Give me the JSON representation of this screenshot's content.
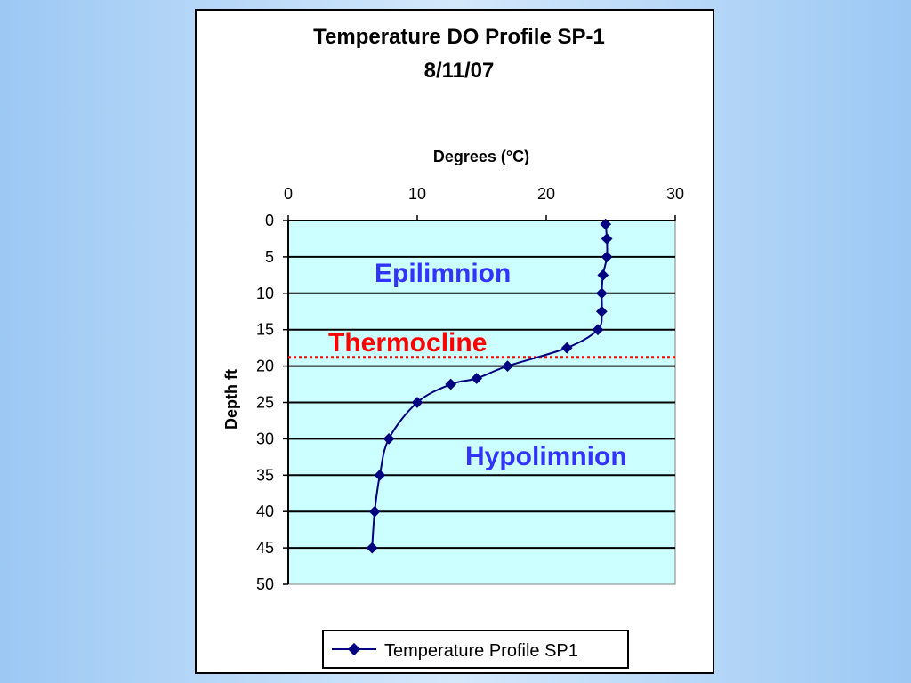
{
  "chart_data": {
    "type": "line",
    "title": "Temperature DO Profile SP-1",
    "subtitle": "8/11/07",
    "xlabel": "Degrees (°C)",
    "ylabel": "Depth ft",
    "xlim": [
      0,
      30
    ],
    "ylim": [
      0,
      50
    ],
    "y_inverted": true,
    "x_axis_position": "top",
    "x_ticks": [
      0,
      10,
      20,
      30
    ],
    "y_ticks": [
      0,
      5,
      10,
      15,
      20,
      25,
      30,
      35,
      40,
      45,
      50
    ],
    "grid": "horizontal",
    "plot_background": "#ccffff",
    "legend_position": "bottom",
    "series": [
      {
        "name": "Temperature Profile SP1",
        "color": "#000080",
        "marker": "diamond",
        "points": [
          {
            "temp": 24.6,
            "depth": 0.5
          },
          {
            "temp": 24.7,
            "depth": 2.5
          },
          {
            "temp": 24.7,
            "depth": 5
          },
          {
            "temp": 24.4,
            "depth": 7.5
          },
          {
            "temp": 24.3,
            "depth": 10
          },
          {
            "temp": 24.3,
            "depth": 12.5
          },
          {
            "temp": 24.0,
            "depth": 15
          },
          {
            "temp": 21.6,
            "depth": 17.5
          },
          {
            "temp": 17.0,
            "depth": 20
          },
          {
            "temp": 14.6,
            "depth": 21.7
          },
          {
            "temp": 12.6,
            "depth": 22.5
          },
          {
            "temp": 10.0,
            "depth": 25
          },
          {
            "temp": 7.8,
            "depth": 30
          },
          {
            "temp": 7.1,
            "depth": 35
          },
          {
            "temp": 6.7,
            "depth": 40
          },
          {
            "temp": 6.5,
            "depth": 45
          }
        ]
      }
    ],
    "annotations": [
      {
        "text": "Epilimnion",
        "color": "#3333ff"
      },
      {
        "text": "Thermocline",
        "color": "#ff0000"
      },
      {
        "text": "Hypolimnion",
        "color": "#3333ff"
      }
    ],
    "thermocline_depth": 18.8,
    "thermocline_line_color": "#ff0000"
  }
}
